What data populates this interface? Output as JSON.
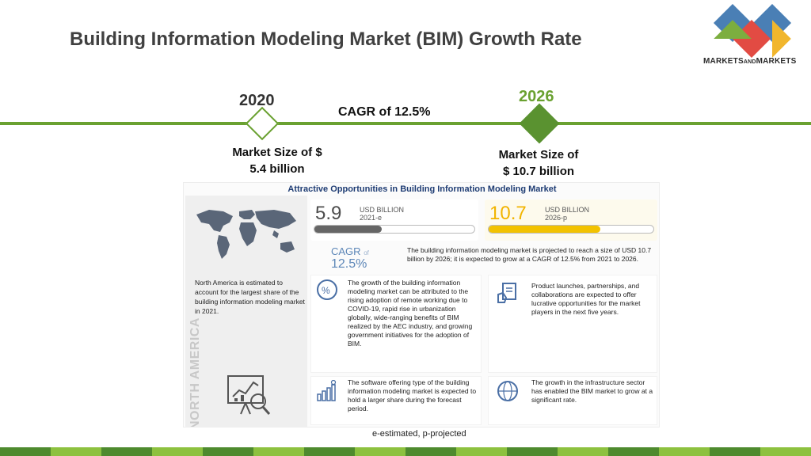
{
  "slide": {
    "title": "Building Information Modeling Market (BIM) Growth Rate"
  },
  "logo": {
    "text_markets": "MARKETS",
    "text_and": "AND",
    "text_markets2": "MARKETS",
    "colors": [
      "#4a7fb5",
      "#e24b43",
      "#7cae3f",
      "#f1b62d"
    ]
  },
  "timeline": {
    "start_year": "2020",
    "end_year": "2026",
    "cagr": "CAGR of 12.5%",
    "start_size_line1": "Market Size of $",
    "start_size_line2": "5.4 billion",
    "end_size_line1": "Market Size of",
    "end_size_line2": "$ 10.7 billion",
    "accent_color": "#6aa131"
  },
  "infographic": {
    "title": "Attractive Opportunities in Building Information Modeling Market",
    "value_2021": {
      "number": "5.9",
      "unit": "USD BILLION",
      "year": "2021-e",
      "bar_fill_fraction": 0.42
    },
    "value_2026": {
      "number": "10.7",
      "unit": "USD BILLION",
      "year": "2026-p",
      "bar_fill_fraction": 0.68
    },
    "cagr_label": "CAGR",
    "cagr_of": "of",
    "cagr_value": "12.5%",
    "projection_text": "The building information modeling market is projected to reach a size of USD 10.7 billion by 2026; it is expected to grow at a CAGR of 12.5% from 2021 to 2026.",
    "region_text": "North America is estimated to account for the largest share of the building information modeling market in 2021.",
    "region_vertical": "NORTH AMERICA",
    "cards": [
      {
        "icon": "percent-growth-icon",
        "text": "The growth of the building information modeling market can be attributed to the rising adoption of remote working due to COVID-19, rapid rise in urbanization globally, wide-ranging benefits of BIM realized by the AEC industry, and growing government initiatives for the adoption of BIM."
      },
      {
        "icon": "product-launch-icon",
        "text": "Product launches, partnerships, and collaborations are expected to offer lucrative opportunities for the market players in the next five years."
      },
      {
        "icon": "software-chart-icon",
        "text": "The software offering type of the building information modeling market is expected to hold a larger share during the forecast period."
      },
      {
        "icon": "globe-icon",
        "text": "The growth in the infrastructure sector has enabled the BIM market to grow at a significant rate."
      }
    ]
  },
  "footnote": "e-estimated, p-projected",
  "bottom_bar_colors": [
    "#4e8a2e",
    "#8dc13f"
  ]
}
